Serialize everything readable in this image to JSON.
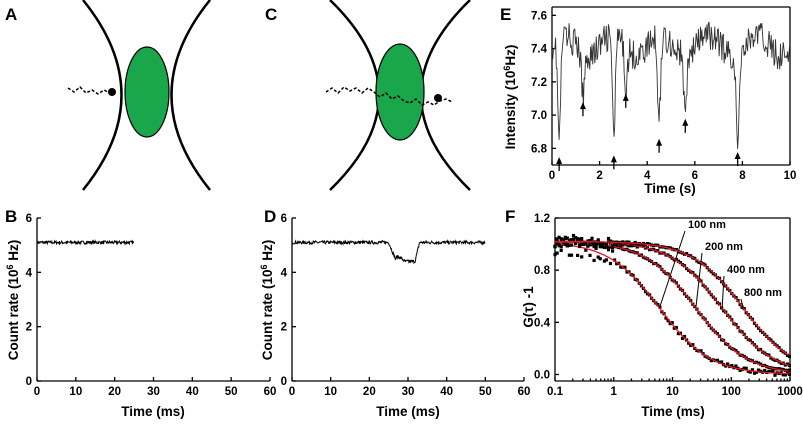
{
  "panel_labels": {
    "A": "A",
    "B": "B",
    "C": "C",
    "D": "D",
    "E": "E",
    "F": "F"
  },
  "colors": {
    "ellipse": "#1aa64a",
    "fit": "#e8141e",
    "trace": "#000000"
  },
  "chart_data": [
    {
      "id": "B",
      "type": "line",
      "xlabel": "Time (ms)",
      "ylabel_main": "Count rate (10",
      "ylabel_sup": "6",
      "ylabel_tail": " Hz)",
      "xlim": [
        0,
        60
      ],
      "ylim": [
        0,
        6
      ],
      "xticks": [
        0,
        10,
        20,
        30,
        40,
        50,
        60
      ],
      "yticks": [
        0,
        2,
        4,
        6
      ],
      "trace": {
        "x_start": 0,
        "x_end": 25,
        "baseline": 5.1,
        "noise": 0.06
      }
    },
    {
      "id": "D",
      "type": "line",
      "xlabel": "Time (ms)",
      "ylabel_main": "Count rate (10",
      "ylabel_sup": "6",
      "ylabel_tail": " Hz)",
      "xlim": [
        0,
        60
      ],
      "ylim": [
        0,
        6
      ],
      "xticks": [
        0,
        10,
        20,
        30,
        40,
        50,
        60
      ],
      "yticks": [
        0,
        2,
        4,
        6
      ],
      "trace": {
        "x_start": 0,
        "x_end": 50,
        "baseline": 5.1,
        "noise": 0.06,
        "dip": {
          "start": 25,
          "end": 33,
          "min": 4.4
        }
      }
    },
    {
      "id": "E",
      "type": "line",
      "xlabel": "Time (s)",
      "ylabel_main": "Intensity (10",
      "ylabel_sup": "6",
      "ylabel_tail": "Hz)",
      "xlim": [
        0,
        10
      ],
      "ylim": [
        6.7,
        7.65
      ],
      "xticks": [
        0,
        2,
        4,
        6,
        8,
        10
      ],
      "yticks": [
        6.8,
        7.0,
        7.2,
        7.4,
        7.6
      ],
      "yticks_text": [
        "6.8",
        "7.0",
        "7.2",
        "7.4",
        "7.6"
      ],
      "baseline": 7.42,
      "dips": [
        {
          "t": 0.3,
          "v": 6.82
        },
        {
          "t": 1.3,
          "v": 7.15
        },
        {
          "t": 2.6,
          "v": 6.83
        },
        {
          "t": 3.1,
          "v": 7.2
        },
        {
          "t": 4.5,
          "v": 6.93
        },
        {
          "t": 5.6,
          "v": 7.05
        },
        {
          "t": 7.8,
          "v": 6.85
        }
      ],
      "arrows_at": [
        0.3,
        1.3,
        2.6,
        3.1,
        4.5,
        5.6,
        7.8
      ]
    },
    {
      "id": "F",
      "type": "line",
      "xscale": "log",
      "xlabel": "Time (ms)",
      "ylabel": "G(τ) -1",
      "xlim": [
        0.1,
        1000
      ],
      "ylim": [
        -0.05,
        1.2
      ],
      "xticks": [
        0.1,
        1,
        10,
        100,
        1000
      ],
      "xticks_text": [
        "0.1",
        "1",
        "10",
        "100",
        "1000"
      ],
      "yticks": [
        0.0,
        0.4,
        0.8,
        1.2
      ],
      "yticks_text": [
        "0.0",
        "0.4",
        "0.8",
        "1.2"
      ],
      "series": [
        {
          "name": "100 nm",
          "tau_d": 6
        },
        {
          "name": "200 nm",
          "tau_d": 25
        },
        {
          "name": "400 nm",
          "tau_d": 70
        },
        {
          "name": "800 nm",
          "tau_d": 160
        }
      ]
    }
  ]
}
